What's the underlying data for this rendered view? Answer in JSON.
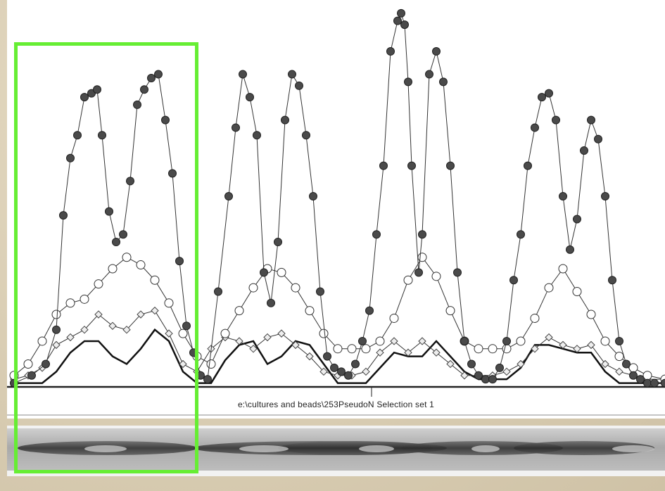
{
  "caption": "e:\\cultures and beads\\253PseudoN Selection set 1",
  "colors": {
    "highlight": "#66ee33",
    "filled_marker": "#4a4a4a",
    "line": "#111111",
    "open_marker_fill": "#ffffff"
  },
  "highlight_region": {
    "x_start": 10,
    "x_end": 275
  },
  "chart_data": {
    "type": "line",
    "title": "",
    "xlabel": "",
    "ylabel": "",
    "xlim": [
      0,
      935
    ],
    "ylim": [
      0,
      100
    ],
    "grid": false,
    "legend": "none",
    "series": [
      {
        "marker": "filled-circle",
        "x": [
          10,
          35,
          55,
          70,
          80,
          90,
          100,
          110,
          120,
          128,
          135,
          145,
          155,
          165,
          175,
          185,
          195,
          205,
          215,
          225,
          235,
          245,
          255,
          265,
          275,
          285,
          300,
          315,
          325,
          335,
          345,
          355,
          365,
          375,
          385,
          395,
          405,
          415,
          425,
          435,
          445,
          455,
          465,
          475,
          485,
          495,
          505,
          515,
          525,
          535,
          545,
          555,
          560,
          565,
          570,
          575,
          585,
          590,
          600,
          610,
          620,
          630,
          640,
          650,
          660,
          670,
          680,
          690,
          700,
          710,
          720,
          730,
          740,
          750,
          760,
          770,
          780,
          790,
          800,
          810,
          820,
          830,
          840,
          850,
          860,
          870,
          880,
          890,
          900,
          910,
          920,
          935
        ],
        "y": [
          1,
          3,
          6,
          15,
          45,
          60,
          66,
          76,
          77,
          78,
          66,
          46,
          38,
          40,
          54,
          74,
          78,
          81,
          82,
          70,
          56,
          33,
          16,
          9,
          3,
          2,
          25,
          50,
          68,
          82,
          76,
          66,
          30,
          22,
          38,
          70,
          82,
          79,
          66,
          50,
          25,
          8,
          5,
          4,
          3,
          6,
          12,
          20,
          40,
          58,
          88,
          96,
          98,
          95,
          80,
          58,
          30,
          40,
          82,
          88,
          80,
          58,
          30,
          12,
          6,
          3,
          2,
          2,
          5,
          12,
          28,
          40,
          58,
          68,
          76,
          77,
          70,
          50,
          36,
          44,
          62,
          70,
          65,
          50,
          28,
          12,
          6,
          3,
          2,
          1,
          1,
          1
        ]
      },
      {
        "marker": "open-circle",
        "x": [
          10,
          30,
          50,
          70,
          90,
          110,
          130,
          150,
          170,
          190,
          210,
          230,
          250,
          270,
          290,
          310,
          330,
          350,
          370,
          390,
          410,
          430,
          450,
          470,
          490,
          510,
          530,
          550,
          570,
          590,
          610,
          630,
          650,
          670,
          690,
          710,
          730,
          750,
          770,
          790,
          810,
          830,
          850,
          870,
          890,
          910,
          935
        ],
        "y": [
          3,
          6,
          12,
          19,
          22,
          23,
          27,
          31,
          34,
          32,
          28,
          22,
          14,
          8,
          6,
          14,
          20,
          26,
          31,
          30,
          26,
          20,
          14,
          10,
          10,
          10,
          12,
          18,
          28,
          34,
          29,
          20,
          12,
          10,
          10,
          10,
          12,
          18,
          26,
          31,
          25,
          19,
          12,
          8,
          5,
          3,
          2
        ]
      },
      {
        "marker": "open-diamond",
        "x": [
          10,
          30,
          50,
          70,
          90,
          110,
          130,
          150,
          170,
          190,
          210,
          230,
          250,
          270,
          290,
          310,
          330,
          350,
          370,
          390,
          410,
          430,
          450,
          470,
          490,
          510,
          530,
          550,
          570,
          590,
          610,
          630,
          650,
          670,
          690,
          710,
          730,
          750,
          770,
          790,
          810,
          830,
          850,
          870,
          890,
          910,
          935
        ],
        "y": [
          2,
          3,
          5,
          11,
          13,
          15,
          19,
          16,
          15,
          19,
          20,
          14,
          6,
          4,
          10,
          13,
          12,
          10,
          13,
          14,
          11,
          8,
          4,
          3,
          3,
          4,
          9,
          12,
          9,
          12,
          9,
          6,
          3,
          3,
          3,
          4,
          6,
          10,
          13,
          11,
          10,
          11,
          6,
          4,
          3,
          2,
          2
        ]
      },
      {
        "marker": "line",
        "x": [
          10,
          30,
          50,
          70,
          90,
          110,
          130,
          150,
          170,
          190,
          210,
          230,
          250,
          270,
          290,
          310,
          330,
          350,
          370,
          390,
          410,
          430,
          450,
          470,
          490,
          510,
          530,
          550,
          570,
          590,
          610,
          630,
          650,
          670,
          690,
          710,
          730,
          750,
          770,
          790,
          810,
          830,
          850,
          870,
          890,
          910,
          935
        ],
        "y": [
          1,
          1,
          1,
          4,
          9,
          12,
          12,
          8,
          6,
          10,
          15,
          12,
          4,
          1,
          1,
          7,
          11,
          12,
          6,
          8,
          12,
          11,
          6,
          1,
          1,
          1,
          5,
          9,
          8,
          8,
          12,
          8,
          4,
          2,
          2,
          2,
          5,
          11,
          11,
          10,
          9,
          9,
          4,
          1,
          1,
          1,
          1
        ]
      }
    ]
  }
}
